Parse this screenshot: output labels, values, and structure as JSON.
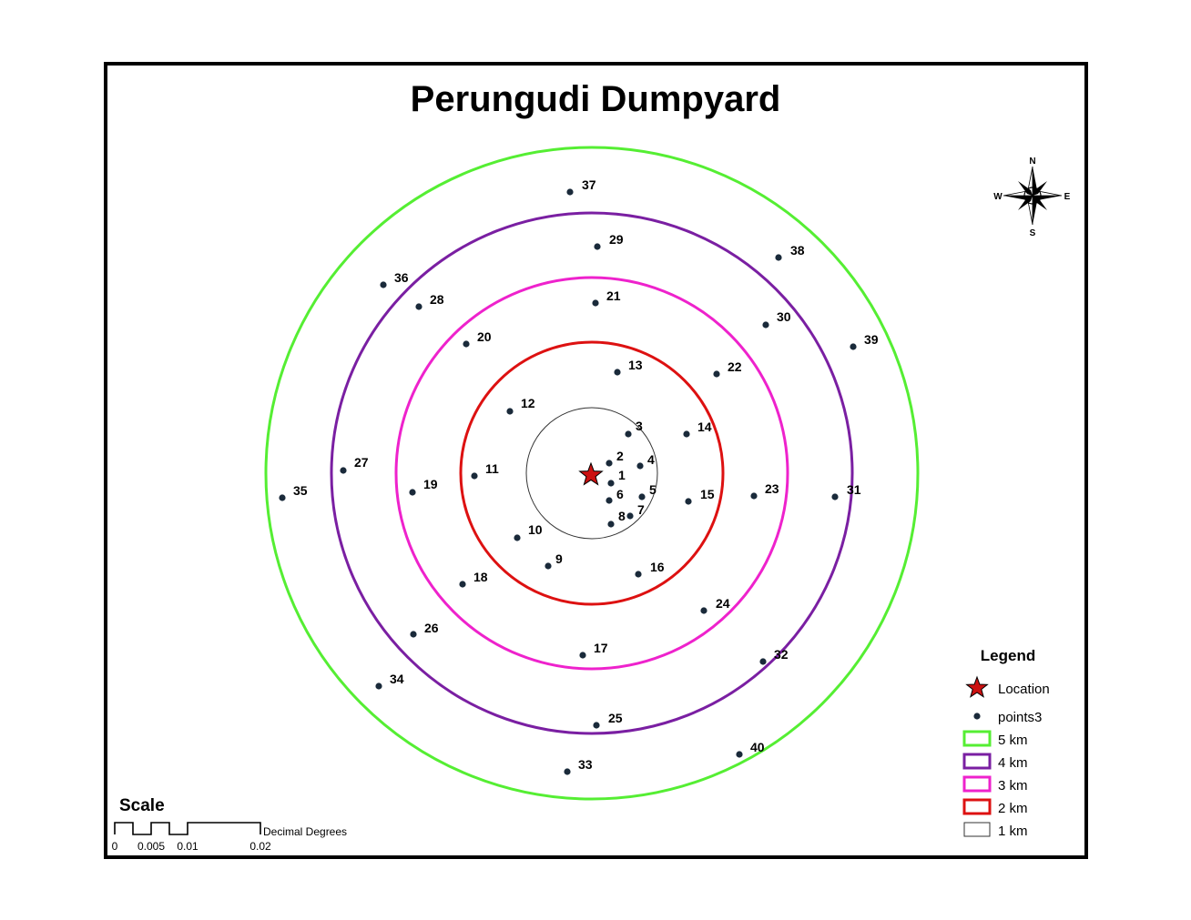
{
  "title": "Perungudi Dumpyard",
  "rings": [
    {
      "label": "5 km",
      "color": "#55ee33"
    },
    {
      "label": "4 km",
      "color": "#7a1fa2"
    },
    {
      "label": "3 km",
      "color": "#ee22cc"
    },
    {
      "label": "2 km",
      "color": "#dd1111"
    },
    {
      "label": "1 km",
      "color": "#333333"
    }
  ],
  "location": {
    "label": "Location",
    "color": "#cc1111"
  },
  "points": {
    "layer_name": "points3",
    "color": "#1a2a3a",
    "labels": [
      "1",
      "2",
      "3",
      "4",
      "5",
      "6",
      "7",
      "8",
      "9",
      "10",
      "11",
      "12",
      "13",
      "14",
      "15",
      "16",
      "17",
      "18",
      "19",
      "20",
      "21",
      "22",
      "23",
      "24",
      "25",
      "26",
      "27",
      "28",
      "29",
      "30",
      "31",
      "32",
      "33",
      "34",
      "35",
      "36",
      "37",
      "38",
      "39",
      "40"
    ]
  },
  "legend": {
    "title": "Legend",
    "items": [
      "Location",
      "points3",
      "5 km",
      "4 km",
      "3 km",
      "2 km",
      "1 km"
    ]
  },
  "scale": {
    "title": "Scale",
    "ticks": [
      "0",
      "0.005",
      "0.01",
      "0.02"
    ],
    "units": "Decimal Degrees"
  },
  "compass": {
    "n": "N",
    "s": "S",
    "e": "E",
    "w": "W"
  }
}
